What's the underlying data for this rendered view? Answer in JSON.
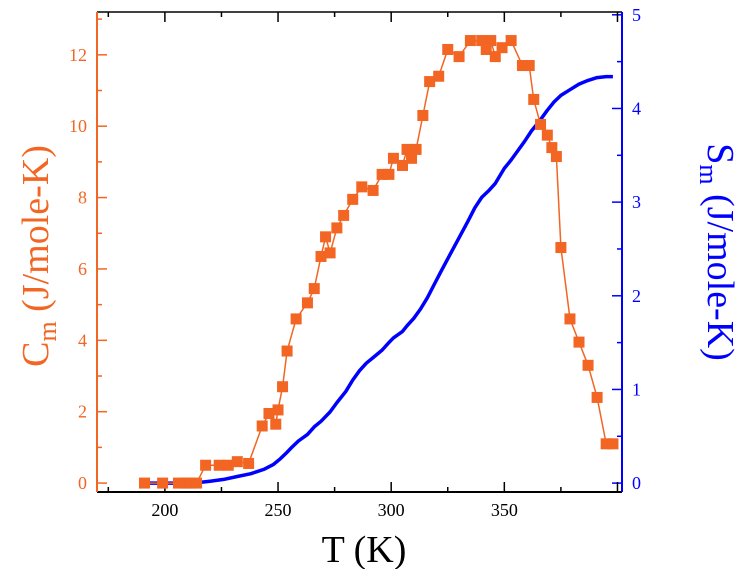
{
  "chart_data": {
    "type": "line",
    "xlabel": "T (K)",
    "xlim": [
      170,
      402
    ],
    "x_ticks": [
      200,
      250,
      300,
      350
    ],
    "left_axis": {
      "label_main": "C",
      "label_sub": "m",
      "label_rest": " (J/mole-K)",
      "ylim": [
        -0.25,
        13.2
      ],
      "ticks": [
        0,
        2,
        4,
        6,
        8,
        10,
        12
      ]
    },
    "right_axis": {
      "label_main": "S",
      "label_sub": "m",
      "label_rest": " (J/mole-K)",
      "ylim": [
        -0.095,
        5.03
      ],
      "ticks": [
        0,
        1,
        2,
        3,
        4,
        5
      ]
    },
    "series": [
      {
        "name": "Cm",
        "axis": "left",
        "color": "#f26522",
        "marker": "square",
        "x": [
          191,
          199,
          206,
          209,
          211,
          214,
          218,
          224,
          228,
          232,
          237,
          243,
          246,
          249,
          250,
          252,
          254,
          258,
          263,
          266,
          269,
          271,
          273,
          276,
          279,
          283,
          287,
          292,
          296,
          299,
          301,
          305,
          307,
          309,
          311,
          314,
          317,
          321,
          325,
          330,
          335,
          340,
          342,
          344,
          346,
          349,
          353,
          358,
          361,
          363,
          366,
          369,
          371,
          373,
          375,
          379,
          383,
          387,
          391,
          395,
          398
        ],
        "y": [
          0.0,
          0.0,
          0.0,
          0.0,
          0.0,
          0.0,
          0.5,
          0.5,
          0.5,
          0.6,
          0.55,
          1.6,
          1.95,
          1.65,
          2.05,
          2.7,
          3.7,
          4.6,
          5.05,
          5.45,
          6.35,
          6.9,
          6.45,
          7.15,
          7.5,
          7.95,
          8.3,
          8.2,
          8.65,
          8.65,
          9.1,
          8.9,
          9.35,
          9.1,
          9.35,
          10.3,
          11.25,
          11.4,
          12.15,
          11.95,
          12.4,
          12.4,
          12.15,
          12.4,
          11.95,
          12.2,
          12.4,
          11.7,
          11.7,
          10.75,
          10.05,
          9.75,
          9.4,
          9.15,
          6.6,
          4.6,
          3.95,
          3.3,
          2.4,
          1.1,
          1.1
        ]
      },
      {
        "name": "Sm",
        "axis": "right",
        "color": "#0000ff",
        "marker": "none",
        "x": [
          191,
          200,
          210,
          216,
          220,
          226,
          232,
          238,
          244,
          248,
          251,
          254,
          256,
          259,
          263,
          266,
          269,
          273,
          276,
          280,
          283,
          286,
          289,
          292,
          296,
          299,
          301,
          305,
          307,
          310,
          313,
          316,
          319,
          322,
          326,
          330,
          334,
          337,
          340,
          343,
          346,
          348,
          350,
          353,
          356,
          359,
          362,
          366,
          369,
          372,
          375,
          379,
          383,
          387,
          391,
          395,
          398
        ],
        "y": [
          0,
          0,
          0,
          0.01,
          0.02,
          0.04,
          0.07,
          0.1,
          0.15,
          0.2,
          0.26,
          0.33,
          0.38,
          0.45,
          0.52,
          0.6,
          0.66,
          0.76,
          0.86,
          0.98,
          1.1,
          1.2,
          1.28,
          1.34,
          1.42,
          1.5,
          1.55,
          1.62,
          1.68,
          1.76,
          1.86,
          1.98,
          2.12,
          2.26,
          2.44,
          2.62,
          2.8,
          2.94,
          3.05,
          3.12,
          3.2,
          3.28,
          3.36,
          3.45,
          3.55,
          3.65,
          3.76,
          3.88,
          3.98,
          4.07,
          4.14,
          4.2,
          4.26,
          4.3,
          4.33,
          4.34,
          4.34
        ]
      }
    ]
  }
}
